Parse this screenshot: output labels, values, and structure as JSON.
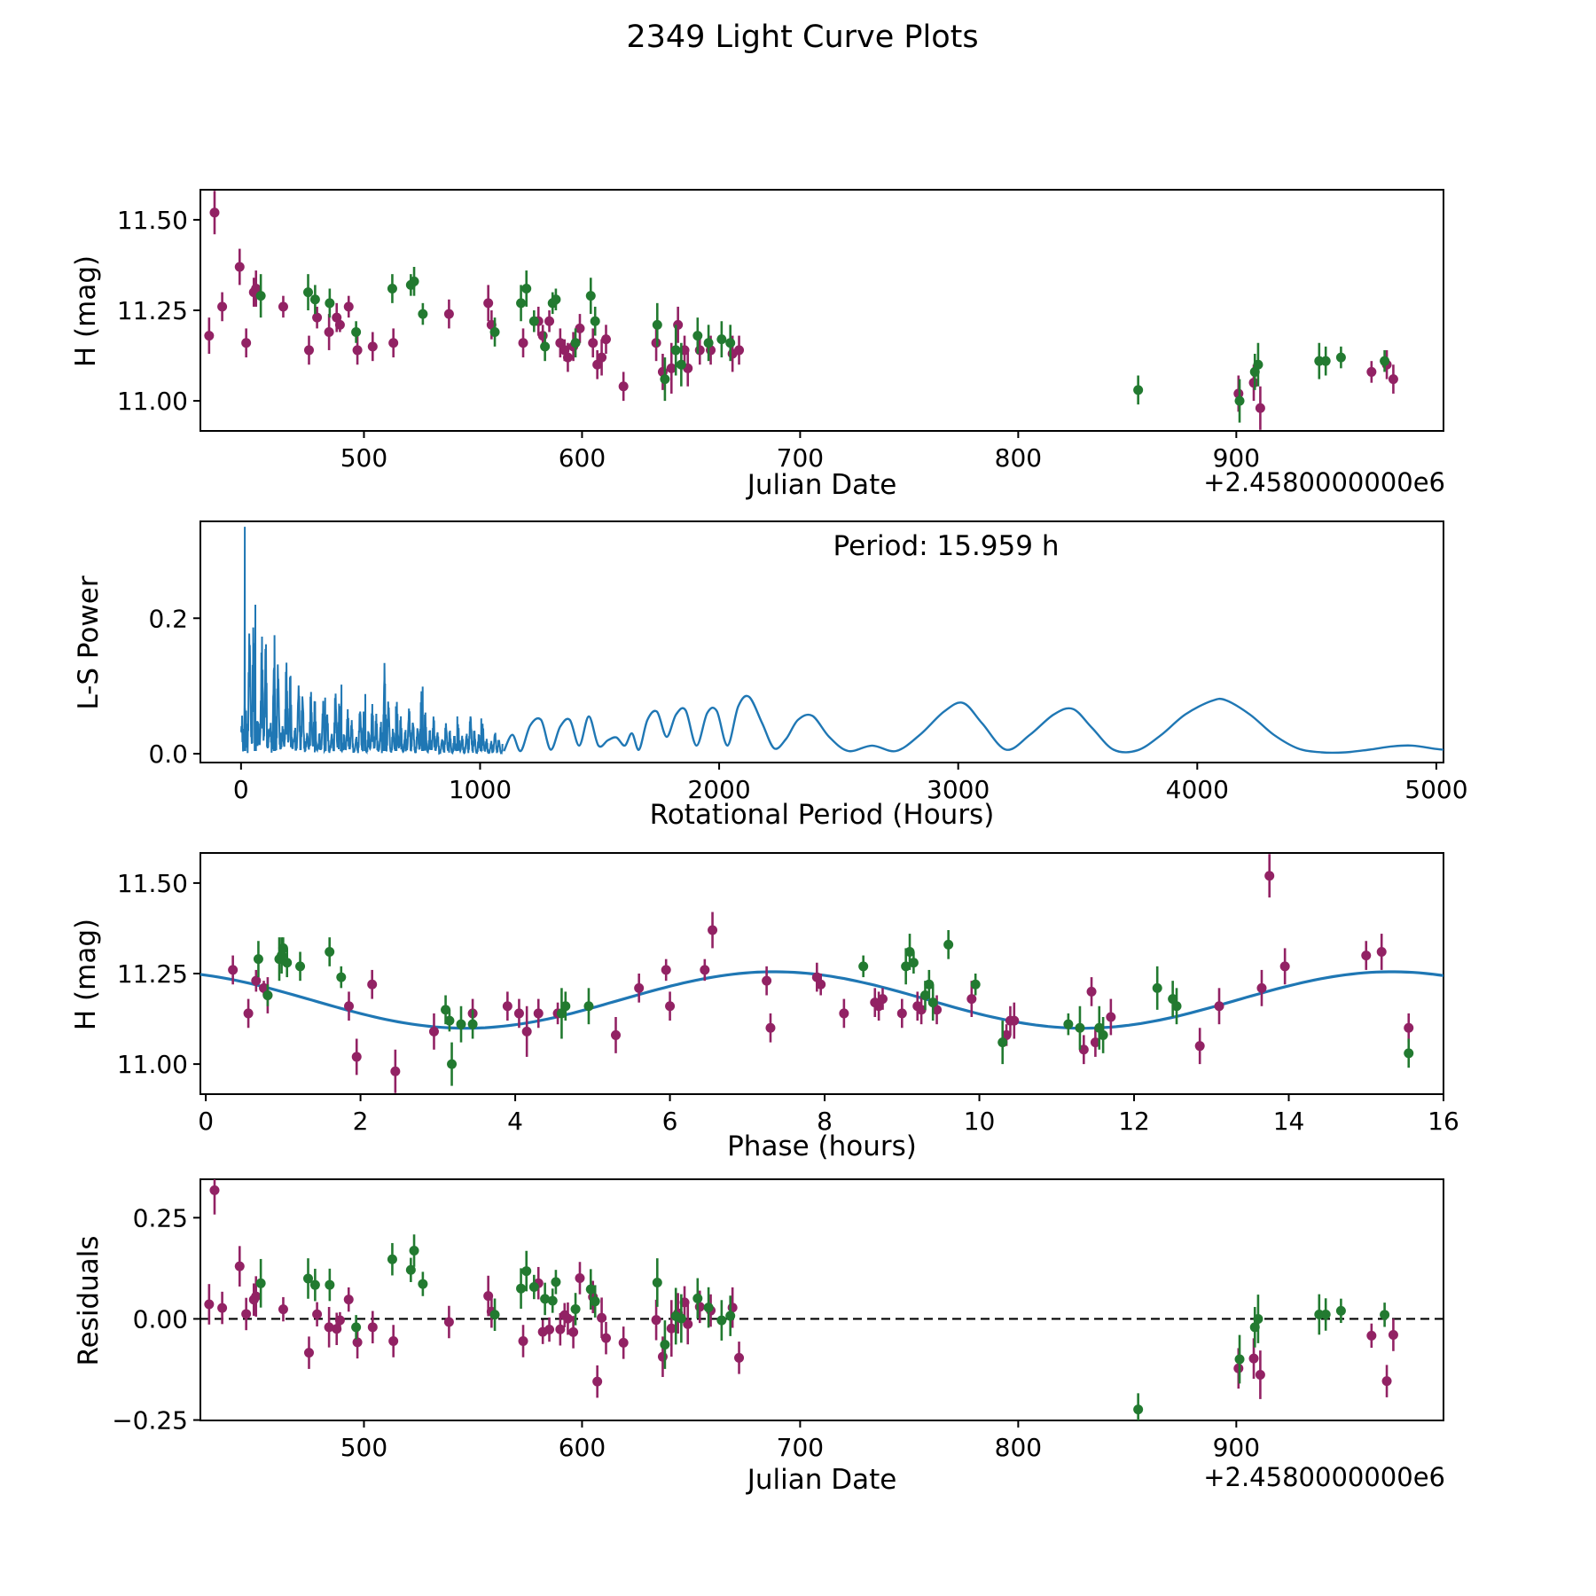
{
  "title": "2349 Light Curve Plots",
  "colors": {
    "filter1_magenta": "#922264",
    "filter2_green": "#227a30",
    "line_blue": "#1f77b4",
    "axis_black": "#000000"
  },
  "observations": {
    "fields": [
      "jd_minus_2458000",
      "phase_hours",
      "h_mag",
      "h_err",
      "filter"
    ],
    "rows": [
      [
        431.5,
        13.75,
        11.52,
        0.06,
        "m"
      ],
      [
        429,
        9.9,
        11.18,
        0.05,
        "m"
      ],
      [
        435,
        0.35,
        11.26,
        0.04,
        "m"
      ],
      [
        443,
        6.55,
        11.37,
        0.05,
        "m"
      ],
      [
        446,
        1.85,
        11.16,
        0.04,
        "m"
      ],
      [
        449.5,
        15.0,
        11.3,
        0.04,
        "m"
      ],
      [
        450.5,
        15.2,
        11.31,
        0.05,
        "m"
      ],
      [
        463,
        6.45,
        11.26,
        0.03,
        "m"
      ],
      [
        474.8,
        0.55,
        11.14,
        0.04,
        "m"
      ],
      [
        478.5,
        0.65,
        11.23,
        0.03,
        "m"
      ],
      [
        484,
        0.8,
        11.19,
        0.05,
        "m"
      ],
      [
        487.5,
        7.25,
        11.23,
        0.04,
        "m"
      ],
      [
        489,
        0.75,
        11.21,
        0.02,
        "m"
      ],
      [
        493,
        5.95,
        11.26,
        0.03,
        "m"
      ],
      [
        497,
        9.0,
        11.14,
        0.04,
        "m"
      ],
      [
        504,
        9.45,
        11.15,
        0.04,
        "m"
      ],
      [
        513.5,
        6.0,
        11.16,
        0.04,
        "m"
      ],
      [
        539,
        7.9,
        11.24,
        0.04,
        "m"
      ],
      [
        557,
        13.95,
        11.27,
        0.05,
        "m"
      ],
      [
        558.5,
        5.6,
        11.21,
        0.04,
        "m"
      ],
      [
        573,
        8.7,
        11.16,
        0.04,
        "m"
      ],
      [
        580,
        2.15,
        11.22,
        0.04,
        "m"
      ],
      [
        582,
        8.75,
        11.18,
        0.03,
        "m"
      ],
      [
        585,
        7.95,
        11.22,
        0.03,
        "m"
      ],
      [
        590,
        9.2,
        11.16,
        0.04,
        "m"
      ],
      [
        592,
        4.55,
        11.14,
        0.03,
        "m"
      ],
      [
        593.5,
        10.4,
        11.12,
        0.04,
        "m"
      ],
      [
        596,
        9.25,
        11.15,
        0.04,
        "m"
      ],
      [
        599,
        11.45,
        11.2,
        0.04,
        "m"
      ],
      [
        605,
        3.9,
        11.16,
        0.04,
        "m"
      ],
      [
        607,
        7.3,
        11.1,
        0.04,
        "m"
      ],
      [
        609,
        10.45,
        11.12,
        0.05,
        "m"
      ],
      [
        611,
        8.65,
        11.17,
        0.04,
        "m"
      ],
      [
        619,
        11.35,
        11.04,
        0.04,
        "m"
      ],
      [
        634,
        13.1,
        11.16,
        0.05,
        "m"
      ],
      [
        637,
        5.3,
        11.08,
        0.05,
        "m"
      ],
      [
        641,
        4.15,
        11.09,
        0.07,
        "m"
      ],
      [
        644,
        13.65,
        11.21,
        0.05,
        "m"
      ],
      [
        647,
        3.45,
        11.14,
        0.04,
        "m"
      ],
      [
        648.5,
        2.95,
        11.09,
        0.05,
        "m"
      ],
      [
        654,
        4.05,
        11.14,
        0.04,
        "m"
      ],
      [
        659,
        4.3,
        11.14,
        0.04,
        "m"
      ],
      [
        669,
        11.7,
        11.13,
        0.05,
        "m"
      ],
      [
        672,
        8.25,
        11.14,
        0.04,
        "m"
      ],
      [
        901,
        1.95,
        11.02,
        0.05,
        "m"
      ],
      [
        908,
        12.85,
        11.05,
        0.05,
        "m"
      ],
      [
        911,
        2.45,
        10.98,
        0.06,
        "m"
      ],
      [
        962,
        10.35,
        11.08,
        0.03,
        "m"
      ],
      [
        969,
        15.55,
        11.1,
        0.04,
        "m"
      ],
      [
        972,
        11.5,
        11.06,
        0.04,
        "m"
      ],
      [
        452.7,
        0.95,
        11.29,
        0.06,
        "g"
      ],
      [
        474.4,
        0.98,
        11.3,
        0.05,
        "g"
      ],
      [
        477.6,
        1.05,
        11.28,
        0.04,
        "g"
      ],
      [
        484.3,
        1.22,
        11.27,
        0.04,
        "g"
      ],
      [
        496.4,
        0.8,
        11.19,
        0.03,
        "g"
      ],
      [
        513,
        1.6,
        11.31,
        0.04,
        "g"
      ],
      [
        521.5,
        1.0,
        11.32,
        0.03,
        "g"
      ],
      [
        523,
        9.6,
        11.33,
        0.04,
        "g"
      ],
      [
        527,
        1.75,
        11.24,
        0.03,
        "g"
      ],
      [
        560,
        9.3,
        11.19,
        0.04,
        "g"
      ],
      [
        572,
        9.05,
        11.27,
        0.05,
        "g"
      ],
      [
        574.5,
        9.1,
        11.31,
        0.05,
        "g"
      ],
      [
        578,
        9.95,
        11.22,
        0.03,
        "g"
      ],
      [
        583,
        3.1,
        11.15,
        0.04,
        "g"
      ],
      [
        586.5,
        8.5,
        11.27,
        0.03,
        "g"
      ],
      [
        588,
        9.15,
        11.28,
        0.03,
        "g"
      ],
      [
        597,
        4.65,
        11.16,
        0.04,
        "g"
      ],
      [
        604,
        0.68,
        11.29,
        0.05,
        "g"
      ],
      [
        606,
        9.35,
        11.22,
        0.04,
        "g"
      ],
      [
        634.5,
        12.3,
        11.21,
        0.06,
        "g"
      ],
      [
        638,
        10.3,
        11.06,
        0.06,
        "g"
      ],
      [
        643,
        4.6,
        11.14,
        0.07,
        "g"
      ],
      [
        645.5,
        11.3,
        11.1,
        0.06,
        "g"
      ],
      [
        653,
        12.5,
        11.18,
        0.05,
        "g"
      ],
      [
        658,
        12.55,
        11.16,
        0.05,
        "g"
      ],
      [
        664,
        9.4,
        11.17,
        0.05,
        "g"
      ],
      [
        668,
        4.95,
        11.16,
        0.05,
        "g"
      ],
      [
        855,
        15.55,
        11.03,
        0.04,
        "g"
      ],
      [
        901.5,
        3.18,
        11.0,
        0.06,
        "g"
      ],
      [
        908.5,
        11.6,
        11.08,
        0.05,
        "g"
      ],
      [
        910,
        11.55,
        11.1,
        0.06,
        "g"
      ],
      [
        938,
        3.3,
        11.11,
        0.05,
        "g"
      ],
      [
        941,
        3.45,
        11.11,
        0.04,
        "g"
      ],
      [
        948,
        3.15,
        11.12,
        0.03,
        "g"
      ],
      [
        968,
        11.15,
        11.11,
        0.03,
        "g"
      ]
    ]
  },
  "chart_data": [
    {
      "type": "scatter",
      "ylabel": "H (mag)",
      "xlabel": "Julian Date",
      "x_offset_label": "+2.4580000000e6",
      "xlim": [
        425,
        995
      ],
      "ylim": [
        10.917,
        11.583
      ],
      "xticks": [
        [
          500,
          "500"
        ],
        [
          600,
          "600"
        ],
        [
          700,
          "700"
        ],
        [
          800,
          "800"
        ],
        [
          900,
          "900"
        ]
      ],
      "yticks": [
        [
          11.0,
          "11.00"
        ],
        [
          11.25,
          "11.25"
        ],
        [
          11.5,
          "11.50"
        ]
      ],
      "x_field": "jd",
      "y_field": "h"
    },
    {
      "type": "line",
      "ylabel": "L-S Power",
      "xlabel": "Rotational Period (Hours)",
      "annotation": "Period: 15.959 h",
      "xlim": [
        -170,
        5030
      ],
      "ylim": [
        -0.013,
        0.343
      ],
      "xticks": [
        [
          0,
          "0"
        ],
        [
          1000,
          "1000"
        ],
        [
          2000,
          "2000"
        ],
        [
          3000,
          "3000"
        ],
        [
          4000,
          "4000"
        ],
        [
          5000,
          "5000"
        ]
      ],
      "yticks": [
        [
          0.0,
          "0.0"
        ],
        [
          0.2,
          "0.2"
        ]
      ],
      "spiky_envelope": [
        [
          2,
          0.05
        ],
        [
          8,
          0.18
        ],
        [
          16,
          0.34
        ],
        [
          25,
          0.26
        ],
        [
          40,
          0.21
        ],
        [
          60,
          0.22
        ],
        [
          80,
          0.19
        ],
        [
          100,
          0.2
        ],
        [
          130,
          0.17
        ],
        [
          160,
          0.16
        ],
        [
          200,
          0.145
        ],
        [
          240,
          0.12
        ],
        [
          280,
          0.105
        ],
        [
          320,
          0.095
        ],
        [
          360,
          0.08
        ],
        [
          400,
          0.105
        ],
        [
          440,
          0.07
        ],
        [
          480,
          0.065
        ],
        [
          520,
          0.09
        ],
        [
          560,
          0.07
        ],
        [
          600,
          0.135
        ],
        [
          640,
          0.08
        ],
        [
          680,
          0.075
        ],
        [
          720,
          0.075
        ],
        [
          760,
          0.1
        ],
        [
          800,
          0.06
        ],
        [
          840,
          0.045
        ],
        [
          880,
          0.055
        ],
        [
          920,
          0.04
        ],
        [
          960,
          0.065
        ],
        [
          1000,
          0.05
        ],
        [
          1040,
          0.03
        ],
        [
          1080,
          0.04
        ]
      ],
      "spikes": [
        [
          16,
          0.335
        ],
        [
          60,
          0.22
        ],
        [
          140,
          0.175
        ],
        [
          352,
          0.083
        ],
        [
          420,
          0.102
        ],
        [
          520,
          0.088
        ],
        [
          600,
          0.134
        ],
        [
          648,
          0.07
        ],
        [
          760,
          0.099
        ],
        [
          905,
          0.055
        ],
        [
          1005,
          0.052
        ]
      ],
      "smooth_curve": [
        [
          1100,
          0.004
        ],
        [
          1135,
          0.028
        ],
        [
          1170,
          0.004
        ],
        [
          1210,
          0.042
        ],
        [
          1255,
          0.05
        ],
        [
          1295,
          0.006
        ],
        [
          1335,
          0.04
        ],
        [
          1375,
          0.05
        ],
        [
          1415,
          0.012
        ],
        [
          1455,
          0.055
        ],
        [
          1495,
          0.012
        ],
        [
          1535,
          0.02
        ],
        [
          1570,
          0.024
        ],
        [
          1605,
          0.012
        ],
        [
          1635,
          0.03
        ],
        [
          1665,
          0.006
        ],
        [
          1700,
          0.05
        ],
        [
          1740,
          0.062
        ],
        [
          1780,
          0.025
        ],
        [
          1820,
          0.058
        ],
        [
          1860,
          0.064
        ],
        [
          1905,
          0.012
        ],
        [
          1950,
          0.06
        ],
        [
          1990,
          0.063
        ],
        [
          2035,
          0.012
        ],
        [
          2080,
          0.07
        ],
        [
          2125,
          0.084
        ],
        [
          2180,
          0.045
        ],
        [
          2230,
          0.008
        ],
        [
          2280,
          0.022
        ],
        [
          2330,
          0.05
        ],
        [
          2390,
          0.056
        ],
        [
          2460,
          0.025
        ],
        [
          2540,
          0.004
        ],
        [
          2640,
          0.012
        ],
        [
          2740,
          0.004
        ],
        [
          2840,
          0.028
        ],
        [
          2940,
          0.062
        ],
        [
          3020,
          0.075
        ],
        [
          3100,
          0.045
        ],
        [
          3200,
          0.006
        ],
        [
          3300,
          0.028
        ],
        [
          3400,
          0.058
        ],
        [
          3480,
          0.066
        ],
        [
          3560,
          0.038
        ],
        [
          3650,
          0.006
        ],
        [
          3750,
          0.005
        ],
        [
          3850,
          0.028
        ],
        [
          3950,
          0.058
        ],
        [
          4060,
          0.078
        ],
        [
          4120,
          0.079
        ],
        [
          4220,
          0.058
        ],
        [
          4320,
          0.028
        ],
        [
          4420,
          0.008
        ],
        [
          4520,
          0.002
        ],
        [
          4620,
          0.002
        ],
        [
          4720,
          0.006
        ],
        [
          4820,
          0.011
        ],
        [
          4900,
          0.012
        ],
        [
          5000,
          0.007
        ],
        [
          5030,
          0.006
        ]
      ]
    },
    {
      "type": "scatter",
      "ylabel": "H (mag)",
      "xlabel": "Phase (hours)",
      "xlim": [
        -0.07,
        16.0
      ],
      "ylim": [
        10.917,
        11.583
      ],
      "xticks": [
        [
          0,
          "0"
        ],
        [
          2,
          "2"
        ],
        [
          4,
          "4"
        ],
        [
          6,
          "6"
        ],
        [
          8,
          "8"
        ],
        [
          10,
          "10"
        ],
        [
          12,
          "12"
        ],
        [
          14,
          "14"
        ],
        [
          16,
          "16"
        ]
      ],
      "yticks": [
        [
          11.0,
          "11.00"
        ],
        [
          11.25,
          "11.25"
        ],
        [
          11.5,
          "11.50"
        ]
      ],
      "fit": {
        "mean_mag": 11.177,
        "amplitude_mag": 0.078,
        "fold_period_hours": 7.9795,
        "phase_of_min_hours": 3.36,
        "full_period_hours": 15.959
      },
      "x_field": "phase",
      "y_field": "h"
    },
    {
      "type": "scatter",
      "ylabel": "Residuals",
      "xlabel": "Julian Date",
      "x_offset_label": "+2.4580000000e6",
      "xlim": [
        425,
        995
      ],
      "ylim": [
        -0.251,
        0.345
      ],
      "xticks": [
        [
          500,
          "500"
        ],
        [
          600,
          "600"
        ],
        [
          700,
          "700"
        ],
        [
          800,
          "800"
        ],
        [
          900,
          "900"
        ]
      ],
      "yticks": [
        [
          -0.25,
          "−0.25"
        ],
        [
          0.0,
          "0.00"
        ],
        [
          0.25,
          "0.25"
        ]
      ],
      "zero_line": true,
      "x_field": "jd",
      "y_field": "resid"
    }
  ]
}
